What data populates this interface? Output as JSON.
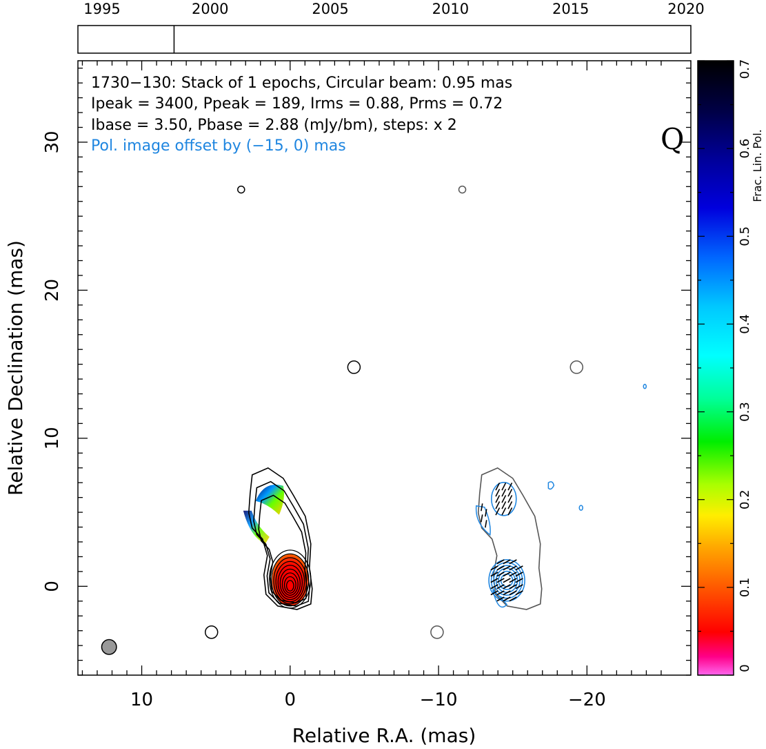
{
  "chart_data": {
    "type": "contour",
    "source": "1730−130",
    "info_lines": [
      "1730−130: Stack of 1 epochs, Circular beam: 0.95 mas",
      "Ipeak = 3400, Ppeak = 189, Irms = 0.88, Prms = 0.72",
      "Ibase = 3.50, Pbase = 2.88 (mJy/bm), steps: x 2"
    ],
    "offset_note": "Pol. image offset by (−15, 0) mas",
    "quality_badge": "Q",
    "xlabel": "Relative R.A. (mas)",
    "ylabel": "Relative Declination (mas)",
    "xlim": [
      14.3,
      -27
    ],
    "ylim": [
      -6,
      35.5
    ],
    "x_ticks": [
      {
        "value": 10,
        "label": "10"
      },
      {
        "value": 0,
        "label": "0"
      },
      {
        "value": -10,
        "label": "−10"
      },
      {
        "value": -20,
        "label": "−20"
      }
    ],
    "y_ticks": [
      {
        "value": 0,
        "label": "0"
      },
      {
        "value": 10,
        "label": "10"
      },
      {
        "value": 20,
        "label": "20"
      },
      {
        "value": 30,
        "label": "30"
      }
    ],
    "timeline": {
      "range": [
        1994.5,
        2020
      ],
      "ticks": [
        {
          "value": 1995,
          "label": "1995"
        },
        {
          "value": 2000,
          "label": "2000"
        },
        {
          "value": 2005,
          "label": "2005"
        },
        {
          "value": 2010,
          "label": "2010"
        },
        {
          "value": 2015,
          "label": "2015"
        },
        {
          "value": 2020,
          "label": "2020"
        }
      ],
      "epochs": [
        1998.5
      ]
    },
    "colorbar": {
      "label": "Frac. Lin. Pol.",
      "range": [
        0,
        0.7
      ],
      "ticks": [
        {
          "value": 0,
          "label": "0"
        },
        {
          "value": 0.1,
          "label": "0.1"
        },
        {
          "value": 0.2,
          "label": "0.2"
        },
        {
          "value": 0.3,
          "label": "0.3"
        },
        {
          "value": 0.4,
          "label": "0.4"
        },
        {
          "value": 0.5,
          "label": "0.5"
        },
        {
          "value": 0.6,
          "label": "0.6"
        },
        {
          "value": 0.7,
          "label": "0.7"
        }
      ]
    },
    "beam": {
      "x": 12.2,
      "y": -4.1,
      "size": 0.95
    },
    "core": {
      "x": 0,
      "y": 0.3,
      "levels": 9
    },
    "jet_component": {
      "x": 1.3,
      "y": 5.2
    },
    "noise_blobs": [
      {
        "x": 3.3,
        "y": 26.8
      },
      {
        "x": -11.6,
        "y": 26.8
      },
      {
        "x": -4.3,
        "y": 14.8
      },
      {
        "x": -19.3,
        "y": 14.8
      },
      {
        "x": 5.3,
        "y": -3.1
      },
      {
        "x": -9.9,
        "y": -3.1
      }
    ],
    "pol_offset": [
      -15,
      0
    ],
    "colors": {
      "total_intensity": "#000000",
      "offset_intensity": "#555555",
      "polarization": "#1f86e0",
      "evpa": "#000000"
    }
  }
}
